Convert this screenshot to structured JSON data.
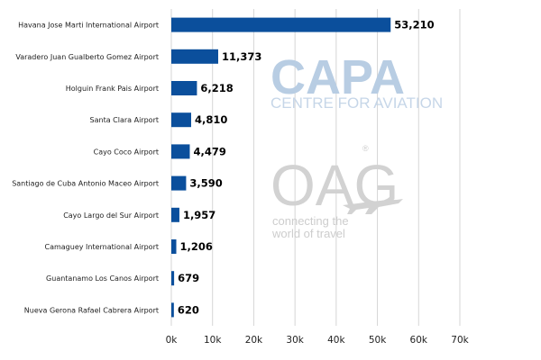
{
  "chart_data": {
    "type": "bar",
    "orientation": "horizontal",
    "categories": [
      "Havana Jose Marti International Airport",
      "Varadero Juan Gualberto Gomez Airport",
      "Holguin Frank Pais Airport",
      "Santa Clara Airport",
      "Cayo Coco Airport",
      "Santiago de Cuba Antonio Maceo Airport",
      "Cayo Largo del Sur Airport",
      "Camaguey International Airport",
      "Guantanamo Los Canos Airport",
      "Nueva Gerona Rafael Cabrera Airport"
    ],
    "values": [
      53210,
      11373,
      6218,
      4810,
      4479,
      3590,
      1957,
      1206,
      679,
      620
    ],
    "value_labels": [
      "53,210",
      "11,373",
      "6,218",
      "4,810",
      "4,479",
      "3,590",
      "1,957",
      "1,206",
      "679",
      "620"
    ],
    "xlim": [
      0,
      70000
    ],
    "x_ticks": [
      0,
      10000,
      20000,
      30000,
      40000,
      50000,
      60000,
      70000
    ],
    "x_tick_labels": [
      "0k",
      "10k",
      "20k",
      "30k",
      "40k",
      "50k",
      "60k",
      "70k"
    ],
    "grid": "vertical",
    "bar_color": "#0b4f9c"
  },
  "watermarks": {
    "capa_logo": "CAPA",
    "capa_tagline": "CENTRE FOR AVIATION",
    "oag_logo": "OAG",
    "oag_mark": "®",
    "oag_tagline_line1": "connecting the",
    "oag_tagline_line2": "world of travel"
  }
}
